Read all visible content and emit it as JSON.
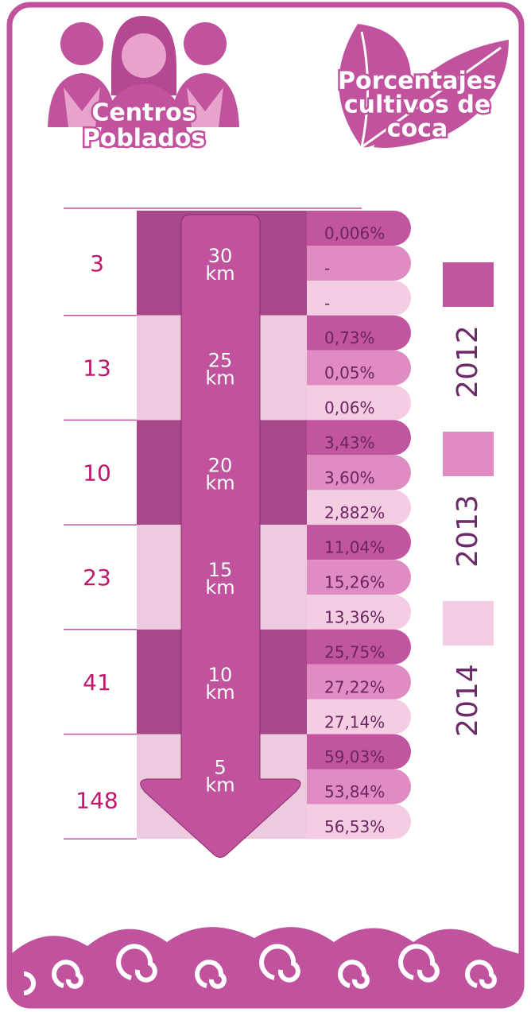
{
  "header": {
    "left_title": [
      "Centros",
      "Poblados"
    ],
    "right_title": [
      "Porcentajes",
      "cultivos de",
      "coca"
    ]
  },
  "rows": [
    {
      "count": 3,
      "distance": "30",
      "unit": "km",
      "percentages": [
        "0,006%",
        "-",
        "-"
      ]
    },
    {
      "count": 13,
      "distance": "25",
      "unit": "km",
      "percentages": [
        "0,73%",
        "0,05%",
        "0,06%"
      ]
    },
    {
      "count": 10,
      "distance": "20",
      "unit": "km",
      "percentages": [
        "3,43%",
        "3,60%",
        "2,882%"
      ]
    },
    {
      "count": 23,
      "distance": "15",
      "unit": "km",
      "percentages": [
        "11,04%",
        "15,26%",
        "13,36%"
      ]
    },
    {
      "count": 41,
      "distance": "10",
      "unit": "km",
      "percentages": [
        "25,75%",
        "27,22%",
        "27,14%"
      ]
    },
    {
      "count": 148,
      "distance": "5",
      "unit": "km",
      "percentages": [
        "59,03%",
        "53,84%",
        "56,53%"
      ]
    }
  ],
  "legend": [
    {
      "year": "2012",
      "color": "#c1559f"
    },
    {
      "year": "2013",
      "color": "#e08bc2"
    },
    {
      "year": "2014",
      "color": "#f5cde3"
    }
  ]
}
